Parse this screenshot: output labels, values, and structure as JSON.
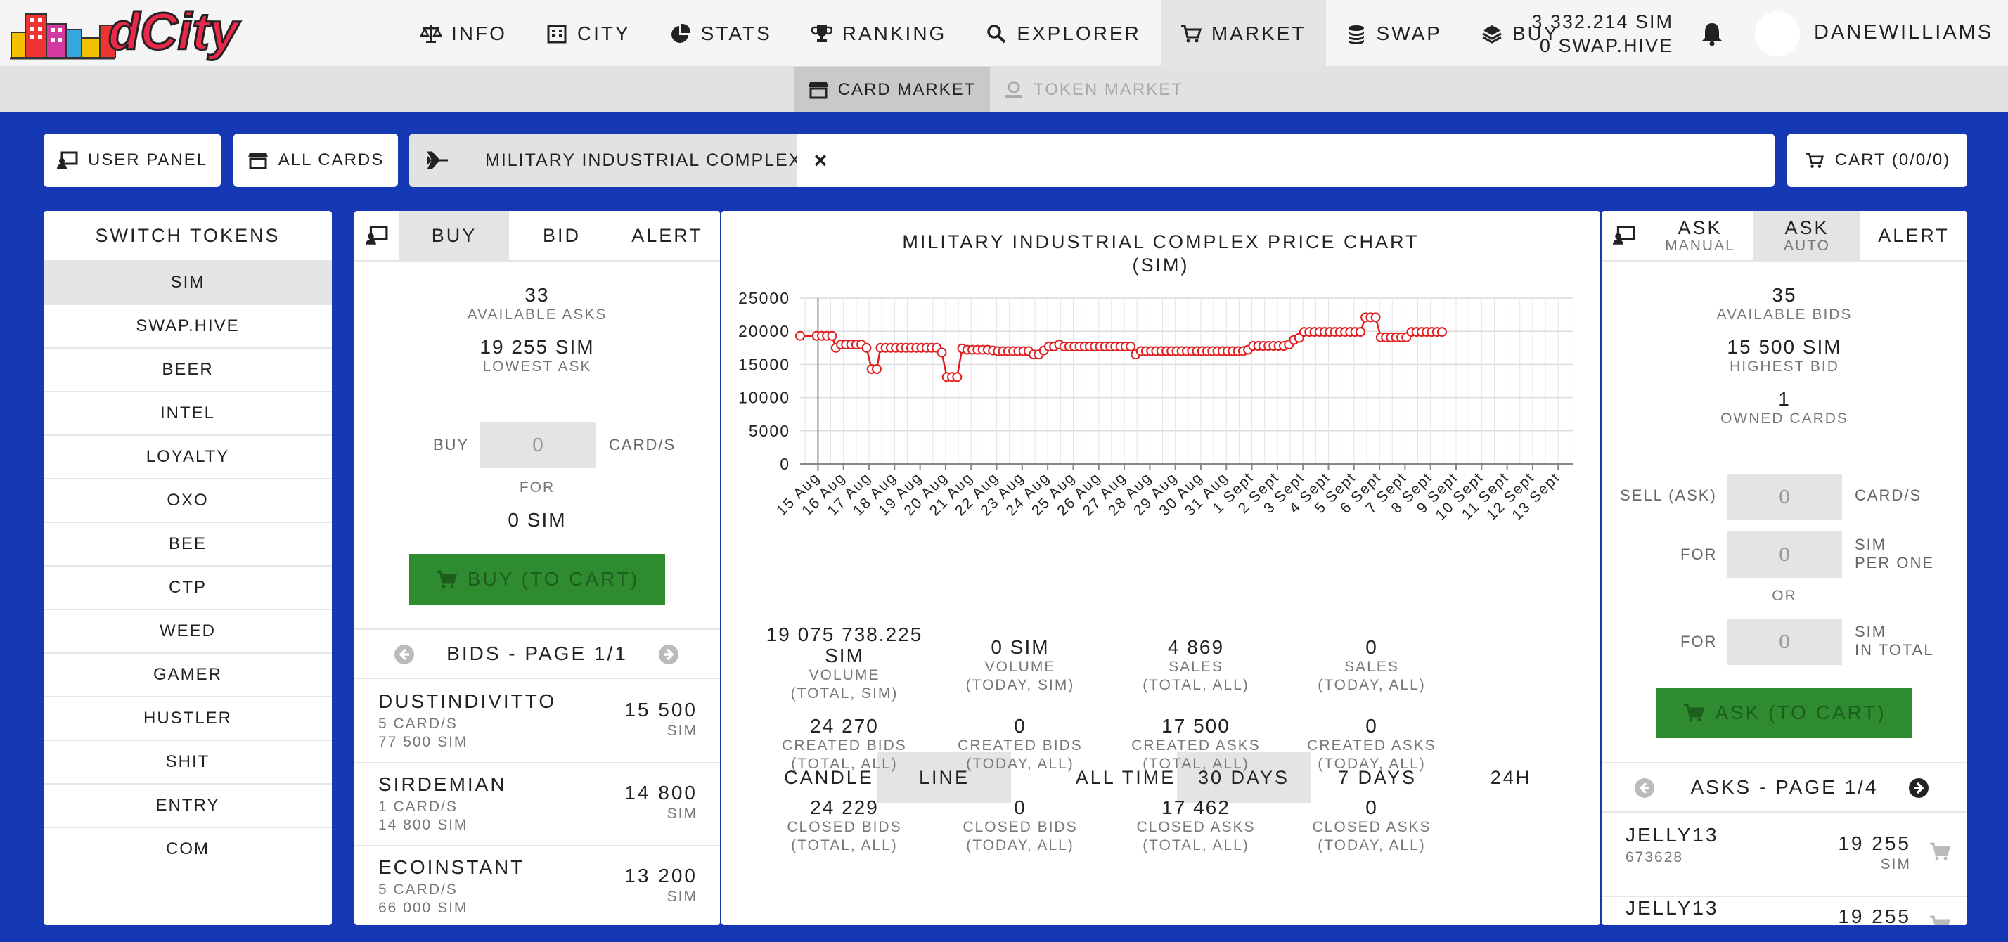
{
  "app": {
    "logo_text": "dCity"
  },
  "nav": {
    "items": [
      {
        "label": "INFO",
        "icon": "scale-icon"
      },
      {
        "label": "CITY",
        "icon": "building-icon"
      },
      {
        "label": "STATS",
        "icon": "pie-chart-icon"
      },
      {
        "label": "RANKING",
        "icon": "trophy-icon"
      },
      {
        "label": "EXPLORER",
        "icon": "search-icon"
      },
      {
        "label": "MARKET",
        "icon": "cart-icon",
        "active": true
      },
      {
        "label": "SWAP",
        "icon": "coins-icon"
      },
      {
        "label": "BUY",
        "icon": "layers-icon"
      }
    ],
    "balance_sim": "3 332.214 SIM",
    "balance_hive": "0 SWAP.HIVE",
    "username": "DANEWILLIAMS"
  },
  "subnav": {
    "card_market": "CARD MARKET",
    "token_market": "TOKEN MARKET"
  },
  "toolbar": {
    "user_panel": "USER PANEL",
    "all_cards": "ALL CARDS",
    "search_tag": "MILITARY INDUSTRIAL COMPLEX",
    "search_value": "",
    "cart": "CART (0/0/0)"
  },
  "switch_tokens": {
    "title": "SWITCH TOKENS",
    "items": [
      "SIM",
      "SWAP.HIVE",
      "BEER",
      "INTEL",
      "LOYALTY",
      "OXO",
      "BEE",
      "CTP",
      "WEED",
      "GAMER",
      "HUSTLER",
      "SHIT",
      "ENTRY",
      "COM"
    ],
    "active": "SIM"
  },
  "buy_panel": {
    "tabs": [
      "BUY",
      "BID",
      "ALERT"
    ],
    "available_asks_value": "33",
    "available_asks_label": "AVAILABLE ASKS",
    "lowest_ask_value": "19 255 SIM",
    "lowest_ask_label": "LOWEST ASK",
    "buy_label": "BUY",
    "buy_qty": "0",
    "card_unit": "CARD/S",
    "for_label": "FOR",
    "for_total": "0 SIM",
    "buy_button": "BUY (TO CART)",
    "bids_pager": "BIDS - PAGE 1/1",
    "bids": [
      {
        "name": "DUSTINDIVITTO",
        "cards": "5 CARD/S",
        "total": "77 500 SIM",
        "price": "15 500",
        "unit": "SIM"
      },
      {
        "name": "SIRDEMIAN",
        "cards": "1 CARD/S",
        "total": "14 800 SIM",
        "price": "14 800",
        "unit": "SIM"
      },
      {
        "name": "ECOINSTANT",
        "cards": "5 CARD/S",
        "total": "66 000 SIM",
        "price": "13 200",
        "unit": "SIM"
      }
    ]
  },
  "chart_panel": {
    "title_line1": "MILITARY INDUSTRIAL COMPLEX PRICE CHART",
    "title_line2": "(SIM)",
    "chart_types": [
      "CANDLE",
      "LINE"
    ],
    "active_type": "LINE",
    "ranges": [
      "ALL TIME",
      "30 DAYS",
      "7 DAYS",
      "24H"
    ],
    "active_range": "30 DAYS",
    "stats": [
      {
        "value": "19 075 738.225 SIM",
        "label1": "VOLUME",
        "label2": "(TOTAL, SIM)"
      },
      {
        "value": "0 SIM",
        "label1": "VOLUME",
        "label2": "(TODAY, SIM)"
      },
      {
        "value": "4 869",
        "label1": "SALES",
        "label2": "(TOTAL, ALL)"
      },
      {
        "value": "0",
        "label1": "SALES",
        "label2": "(TODAY, ALL)"
      },
      {
        "value": "24 270",
        "label1": "CREATED BIDS",
        "label2": "(TOTAL, ALL)"
      },
      {
        "value": "0",
        "label1": "CREATED BIDS",
        "label2": "(TODAY, ALL)"
      },
      {
        "value": "17 500",
        "label1": "CREATED ASKS",
        "label2": "(TOTAL, ALL)"
      },
      {
        "value": "0",
        "label1": "CREATED ASKS",
        "label2": "(TODAY, ALL)"
      },
      {
        "value": "24 229",
        "label1": "CLOSED BIDS",
        "label2": "(TOTAL, ALL)"
      },
      {
        "value": "0",
        "label1": "CLOSED BIDS",
        "label2": "(TODAY, ALL)"
      },
      {
        "value": "17 462",
        "label1": "CLOSED ASKS",
        "label2": "(TOTAL, ALL)"
      },
      {
        "value": "0",
        "label1": "CLOSED ASKS",
        "label2": "(TODAY, ALL)"
      }
    ]
  },
  "chart_data": {
    "type": "line",
    "x_labels": [
      "15 Aug",
      "16 Aug",
      "17 Aug",
      "18 Aug",
      "19 Aug",
      "20 Aug",
      "21 Aug",
      "22 Aug",
      "23 Aug",
      "24 Aug",
      "25 Aug",
      "26 Aug",
      "27 Aug",
      "28 Aug",
      "29 Aug",
      "30 Aug",
      "31 Aug",
      "1 Sept",
      "2 Sept",
      "3 Sept",
      "4 Sept",
      "5 Sept",
      "6 Sept",
      "7 Sept",
      "8 Sept",
      "9 Sept",
      "10 Sept",
      "11 Sept",
      "12 Sept",
      "13 Sept"
    ],
    "x_start_day": 14.3,
    "x_end_day": 44.6,
    "yticks": [
      0,
      5000,
      10000,
      15000,
      20000,
      25000
    ],
    "ylim": [
      0,
      25000
    ],
    "grid": true,
    "color": "#e02020",
    "points": [
      [
        14.3,
        19300
      ],
      [
        14.95,
        19300
      ],
      [
        15.15,
        19300
      ],
      [
        15.35,
        19300
      ],
      [
        15.55,
        19300
      ],
      [
        15.7,
        17500
      ],
      [
        15.9,
        18000
      ],
      [
        16.1,
        18000
      ],
      [
        16.3,
        18000
      ],
      [
        16.5,
        18000
      ],
      [
        16.7,
        18000
      ],
      [
        16.9,
        17500
      ],
      [
        17.1,
        14300
      ],
      [
        17.3,
        14300
      ],
      [
        17.45,
        17500
      ],
      [
        17.65,
        17500
      ],
      [
        17.85,
        17500
      ],
      [
        18.05,
        17500
      ],
      [
        18.25,
        17500
      ],
      [
        18.45,
        17500
      ],
      [
        18.65,
        17500
      ],
      [
        18.85,
        17500
      ],
      [
        19.05,
        17500
      ],
      [
        19.25,
        17500
      ],
      [
        19.45,
        17500
      ],
      [
        19.65,
        17500
      ],
      [
        19.85,
        16800
      ],
      [
        20.05,
        13100
      ],
      [
        20.25,
        13100
      ],
      [
        20.45,
        13100
      ],
      [
        20.65,
        17400
      ],
      [
        20.85,
        17200
      ],
      [
        21.05,
        17200
      ],
      [
        21.25,
        17200
      ],
      [
        21.45,
        17200
      ],
      [
        21.65,
        17200
      ],
      [
        21.85,
        17100
      ],
      [
        22.05,
        17000
      ],
      [
        22.25,
        17000
      ],
      [
        22.45,
        17000
      ],
      [
        22.65,
        17000
      ],
      [
        22.85,
        17000
      ],
      [
        23.05,
        17000
      ],
      [
        23.25,
        17000
      ],
      [
        23.45,
        16500
      ],
      [
        23.65,
        16500
      ],
      [
        23.85,
        17100
      ],
      [
        24.05,
        17700
      ],
      [
        24.25,
        17700
      ],
      [
        24.45,
        18000
      ],
      [
        24.65,
        17700
      ],
      [
        24.85,
        17700
      ],
      [
        25.05,
        17700
      ],
      [
        25.25,
        17700
      ],
      [
        25.45,
        17700
      ],
      [
        25.65,
        17700
      ],
      [
        25.85,
        17700
      ],
      [
        26.05,
        17700
      ],
      [
        26.25,
        17700
      ],
      [
        26.45,
        17700
      ],
      [
        26.65,
        17700
      ],
      [
        26.85,
        17700
      ],
      [
        27.05,
        17700
      ],
      [
        27.25,
        17700
      ],
      [
        27.45,
        16500
      ],
      [
        27.65,
        17000
      ],
      [
        27.85,
        17000
      ],
      [
        28.05,
        17000
      ],
      [
        28.25,
        17000
      ],
      [
        28.45,
        17000
      ],
      [
        28.65,
        17000
      ],
      [
        28.85,
        17000
      ],
      [
        29.05,
        17000
      ],
      [
        29.25,
        17000
      ],
      [
        29.45,
        17000
      ],
      [
        29.65,
        17000
      ],
      [
        29.85,
        17000
      ],
      [
        30.05,
        17000
      ],
      [
        30.25,
        17000
      ],
      [
        30.45,
        17000
      ],
      [
        30.65,
        17000
      ],
      [
        30.85,
        17000
      ],
      [
        31.05,
        17000
      ],
      [
        31.25,
        17000
      ],
      [
        31.45,
        17000
      ],
      [
        31.65,
        17000
      ],
      [
        31.85,
        17200
      ],
      [
        32.05,
        17800
      ],
      [
        32.25,
        17800
      ],
      [
        32.45,
        17800
      ],
      [
        32.65,
        17800
      ],
      [
        32.85,
        17800
      ],
      [
        33.05,
        17800
      ],
      [
        33.25,
        17800
      ],
      [
        33.45,
        18000
      ],
      [
        33.65,
        18700
      ],
      [
        33.85,
        19000
      ],
      [
        34.05,
        19900
      ],
      [
        34.25,
        19900
      ],
      [
        34.45,
        19900
      ],
      [
        34.65,
        19900
      ],
      [
        34.85,
        19900
      ],
      [
        35.05,
        19900
      ],
      [
        35.25,
        19900
      ],
      [
        35.45,
        19900
      ],
      [
        35.65,
        19900
      ],
      [
        35.85,
        19900
      ],
      [
        36.05,
        19900
      ],
      [
        36.25,
        19900
      ],
      [
        36.45,
        22100
      ],
      [
        36.65,
        22100
      ],
      [
        36.85,
        22100
      ],
      [
        37.05,
        19100
      ],
      [
        37.25,
        19100
      ],
      [
        37.45,
        19100
      ],
      [
        37.65,
        19100
      ],
      [
        37.85,
        19100
      ],
      [
        38.05,
        19100
      ],
      [
        38.25,
        19900
      ],
      [
        38.45,
        19900
      ],
      [
        38.65,
        19900
      ],
      [
        38.85,
        19900
      ],
      [
        39.05,
        19900
      ],
      [
        39.25,
        19900
      ],
      [
        39.45,
        19900
      ]
    ]
  },
  "ask_panel": {
    "tab_manual_1": "ASK",
    "tab_manual_2": "MANUAL",
    "tab_auto_1": "ASK",
    "tab_auto_2": "AUTO",
    "tab_alert": "ALERT",
    "available_bids_value": "35",
    "available_bids_label": "AVAILABLE BIDS",
    "highest_bid_value": "15 500 SIM",
    "highest_bid_label": "HIGHEST BID",
    "owned_value": "1",
    "owned_label": "OWNED CARDS",
    "sell_label": "SELL (ASK)",
    "sell_qty": "0",
    "card_unit": "CARD/S",
    "for_label": "FOR",
    "per_one": "0",
    "per_one_unit1": "SIM",
    "per_one_unit2": "PER ONE",
    "or_label": "OR",
    "in_total": "0",
    "in_total_unit1": "SIM",
    "in_total_unit2": "IN TOTAL",
    "ask_button": "ASK (TO CART)",
    "asks_pager": "ASKS - PAGE 1/4",
    "asks": [
      {
        "name": "JELLY13",
        "id": "673628",
        "price": "19 255",
        "unit": "SIM"
      },
      {
        "name": "JELLY13",
        "id": "",
        "price": "19 255",
        "unit": ""
      }
    ]
  }
}
